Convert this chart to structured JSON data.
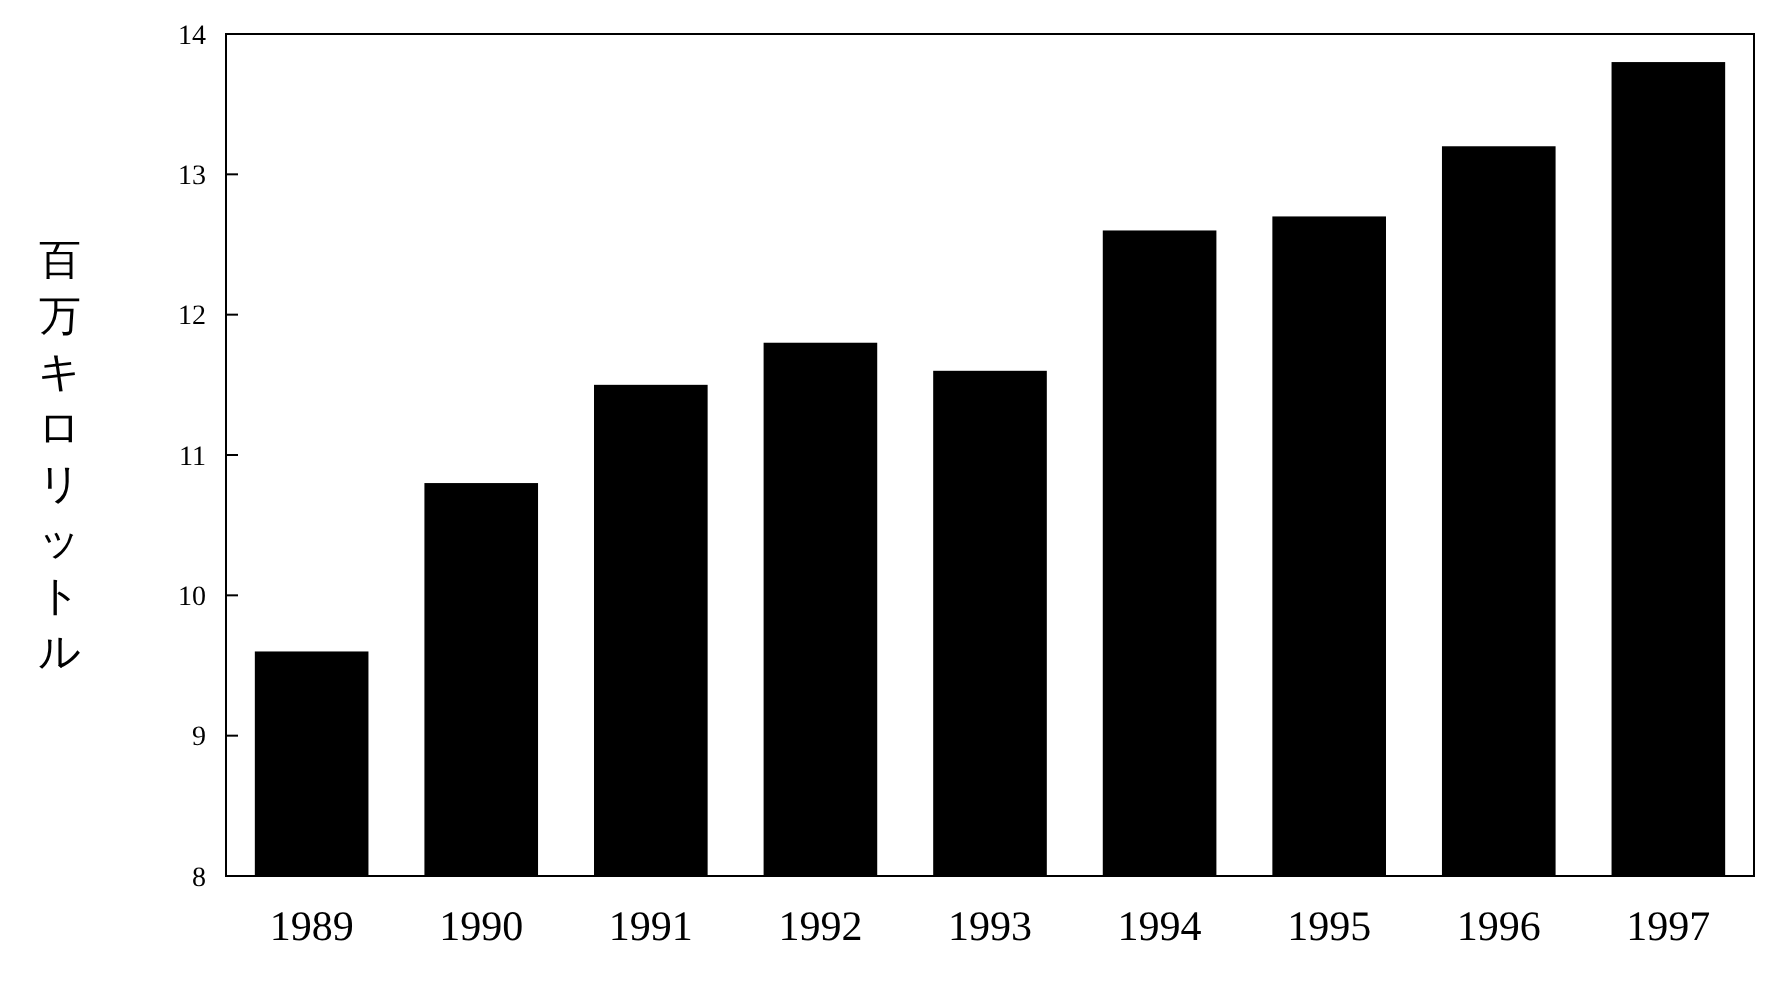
{
  "chart_data": {
    "type": "bar",
    "ylabel": "百万キロリットル",
    "categories": [
      "1989",
      "1990",
      "1991",
      "1992",
      "1993",
      "1994",
      "1995",
      "1996",
      "1997"
    ],
    "values": [
      9.6,
      10.8,
      11.5,
      11.8,
      11.6,
      12.6,
      12.7,
      13.2,
      13.8
    ],
    "color": "#000000",
    "ylim": [
      8,
      14
    ],
    "yticks": [
      8,
      9,
      10,
      11,
      12,
      13,
      14
    ],
    "grid": false
  }
}
